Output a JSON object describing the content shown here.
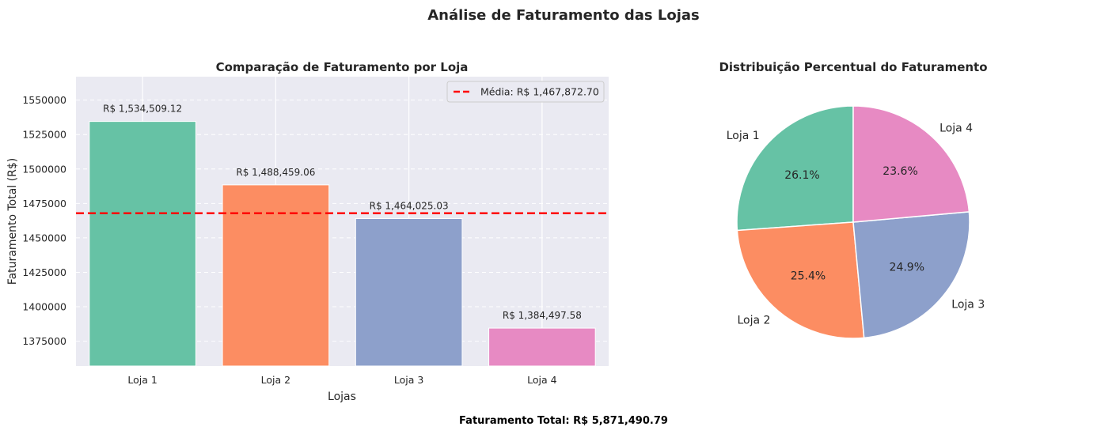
{
  "figure": {
    "suptitle": "Análise de Faturamento das Lojas",
    "footer": "Faturamento Total: R$ 5,871,490.79"
  },
  "colors": {
    "background_axes": "#EAEAF2",
    "grid": "#FFFFFF",
    "mean_line": "#FF0000",
    "palette": [
      "#66C2A5",
      "#FC8D62",
      "#8DA0CB",
      "#E78AC3"
    ]
  },
  "chart_data": [
    {
      "type": "bar",
      "title": "Comparação de Faturamento por Loja",
      "xlabel": "Lojas",
      "ylabel": "Faturamento Total (R$)",
      "categories": [
        "Loja 1",
        "Loja 2",
        "Loja 3",
        "Loja 4"
      ],
      "values": [
        1534509.12,
        1488459.06,
        1464025.03,
        1384497.58
      ],
      "value_labels": [
        "R$ 1,534,509.12",
        "R$ 1,488,459.06",
        "R$ 1,464,025.03",
        "R$ 1,384,497.58"
      ],
      "ylim": [
        1357000,
        1567000
      ],
      "yticks": [
        1375000,
        1400000,
        1425000,
        1450000,
        1475000,
        1500000,
        1525000,
        1550000
      ],
      "ytick_labels": [
        "1375000",
        "1400000",
        "1425000",
        "1450000",
        "1475000",
        "1500000",
        "1525000",
        "1550000"
      ],
      "mean": {
        "value": 1467872.7,
        "label": "Média: R$ 1,467,872.70"
      },
      "legend_position": "top-right",
      "grid": true
    },
    {
      "type": "pie",
      "title": "Distribuição Percentual do Faturamento",
      "labels": [
        "Loja 1",
        "Loja 2",
        "Loja 3",
        "Loja 4"
      ],
      "values": [
        1534509.12,
        1488459.06,
        1464025.03,
        1384497.58
      ],
      "percent_labels": [
        "26.1%",
        "25.4%",
        "24.9%",
        "23.6%"
      ],
      "start_angle": 90
    }
  ]
}
